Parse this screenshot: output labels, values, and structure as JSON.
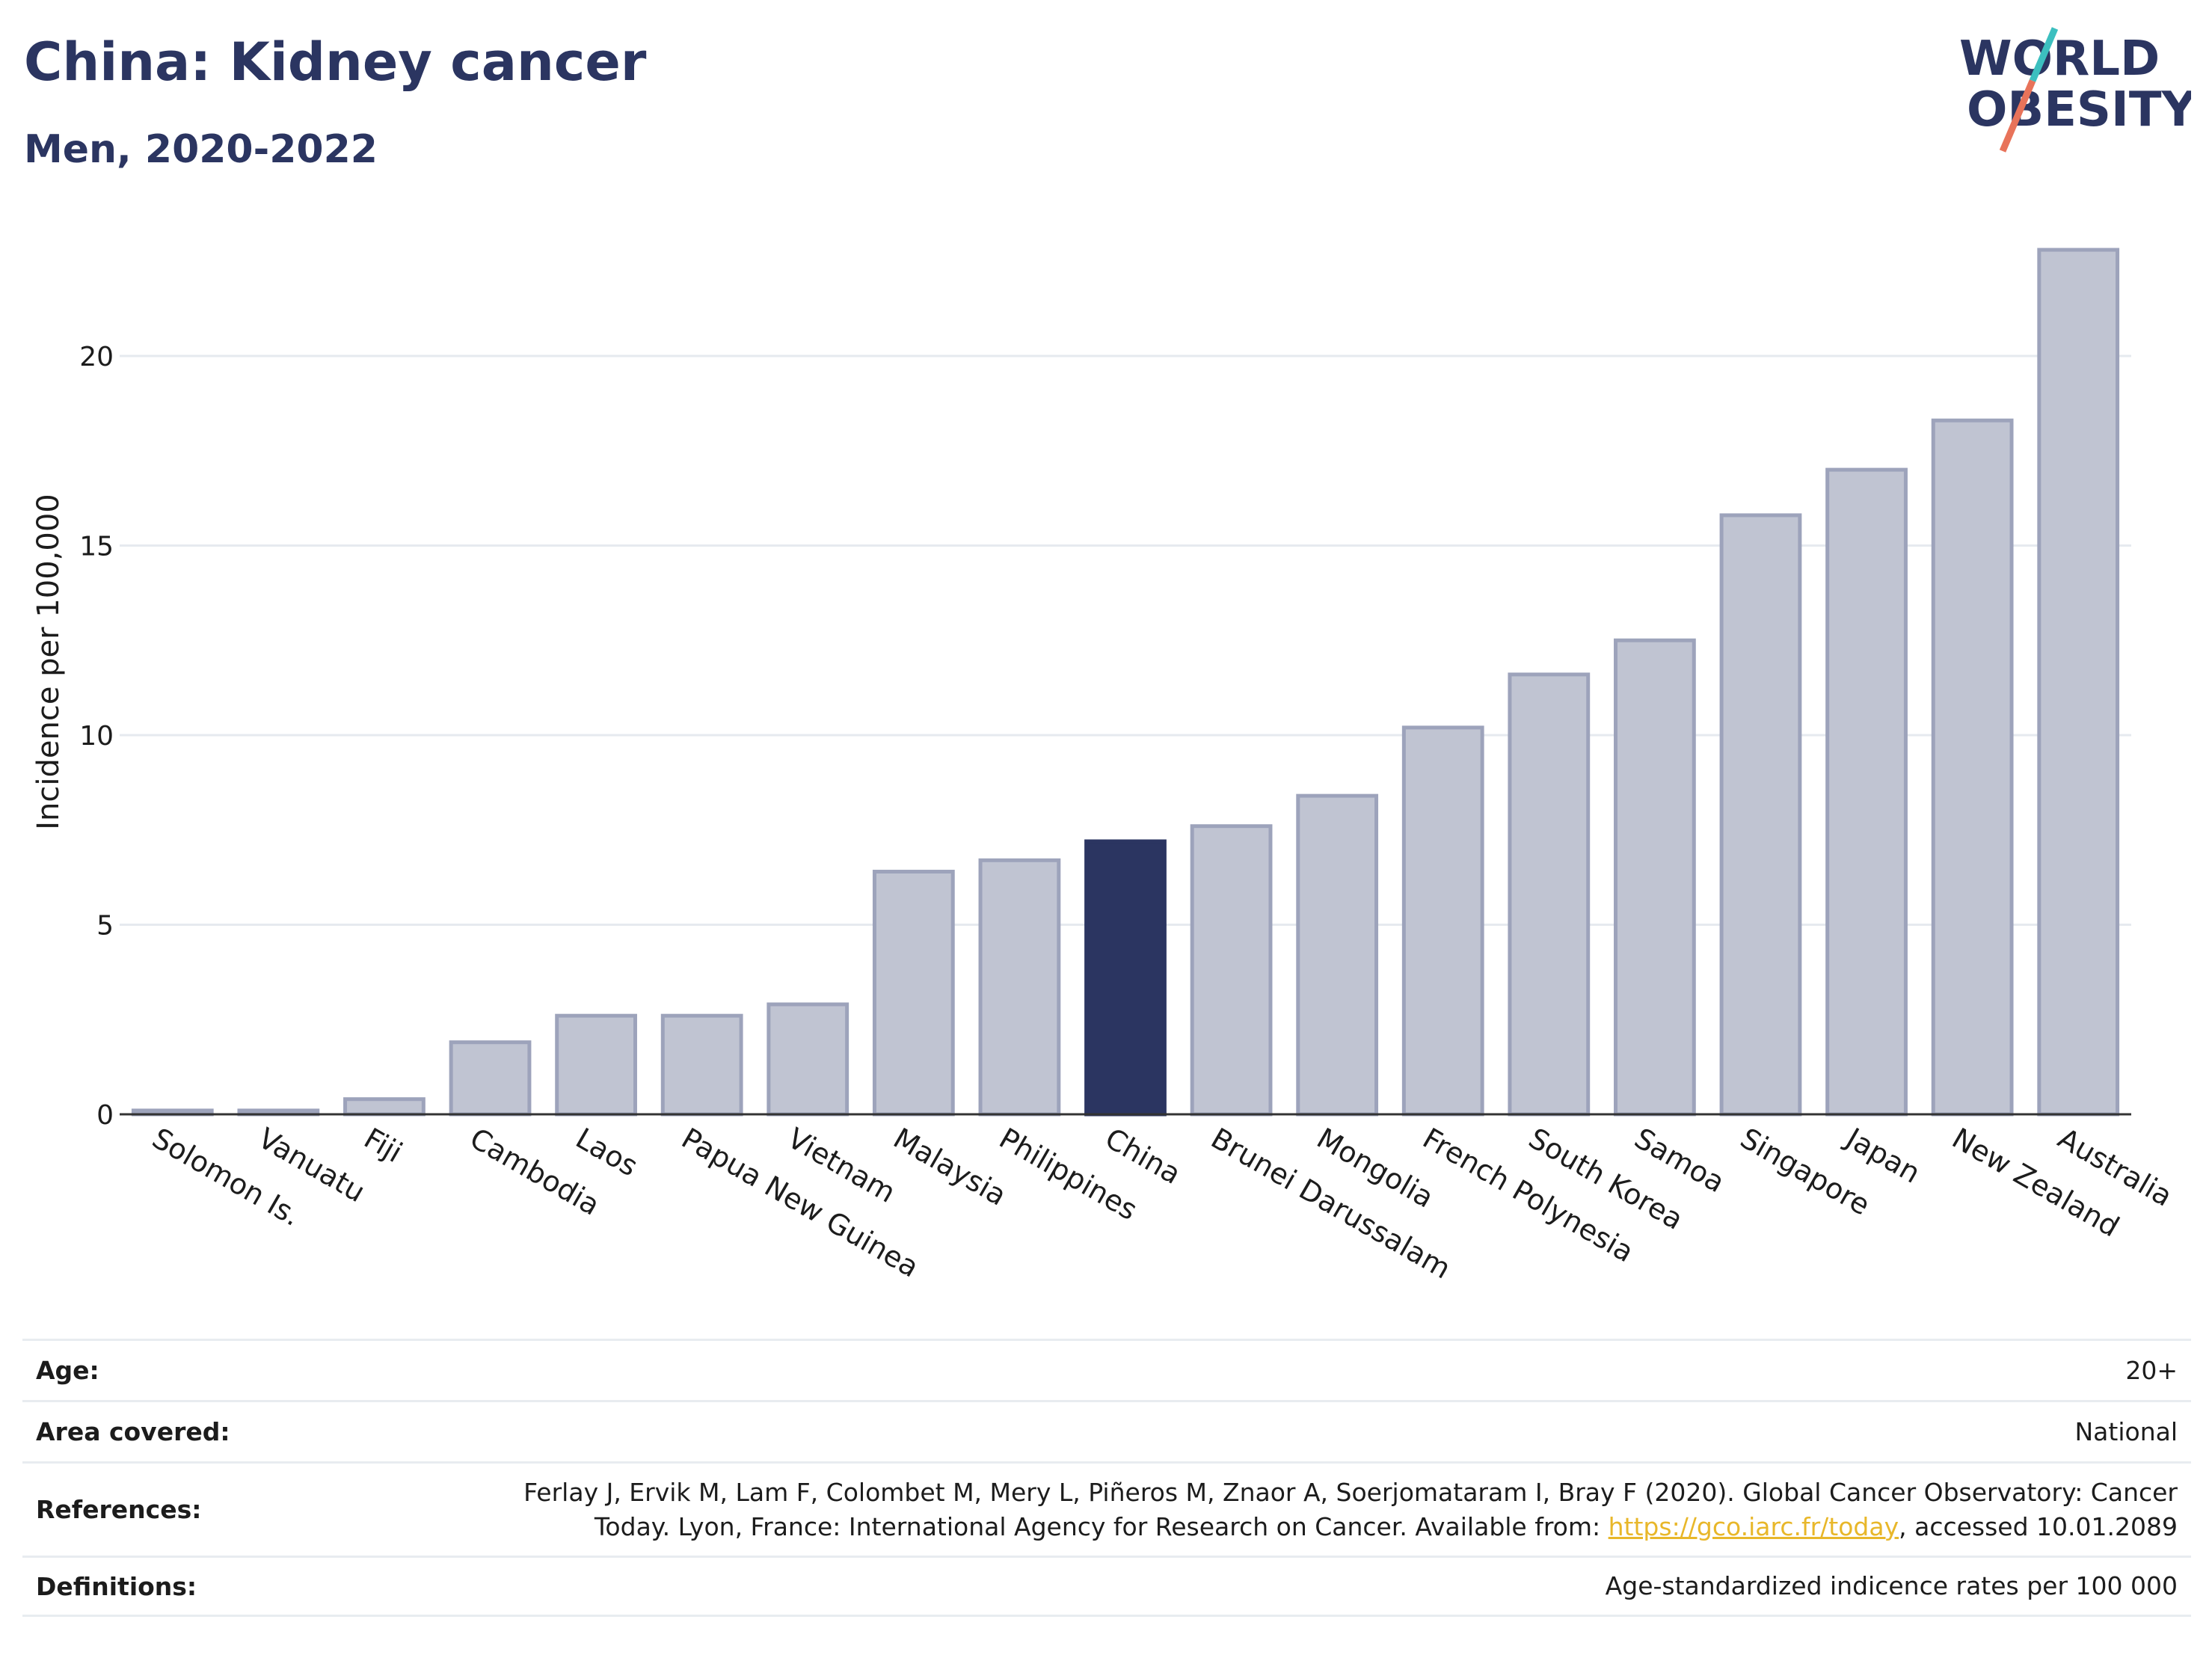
{
  "header": {
    "title": "China: Kidney cancer",
    "subtitle": "Men, 2020-2022"
  },
  "logo": {
    "line1": "WORLD",
    "line2": "OBESITY",
    "colors": {
      "text": "#2b3561",
      "slash_teal": "#3cbfbf",
      "slash_coral": "#e8735a"
    }
  },
  "chart_data": {
    "type": "bar",
    "categories": [
      "Solomon Is.",
      "Vanuatu",
      "Fiji",
      "Cambodia",
      "Laos",
      "Papua New Guinea",
      "Vietnam",
      "Malaysia",
      "Philippines",
      "China",
      "Brunei Darussalam",
      "Mongolia",
      "French Polynesia",
      "South Korea",
      "Samoa",
      "Singapore",
      "Japan",
      "New Zealand",
      "Australia"
    ],
    "values": [
      0.1,
      0.1,
      0.4,
      1.9,
      2.6,
      2.6,
      2.9,
      6.4,
      6.7,
      7.2,
      7.6,
      8.4,
      10.2,
      11.6,
      12.5,
      15.8,
      17.0,
      18.3,
      22.8
    ],
    "highlight": "China",
    "title": "",
    "xlabel": "",
    "ylabel": "Incidence per 100,000",
    "ylim": [
      0,
      23.5
    ],
    "yticks": [
      0,
      5,
      10,
      15,
      20
    ],
    "grid": true,
    "colors": {
      "bar": "#c0c4d2",
      "bar_edge": "#9da3bb",
      "highlight": "#2b3561",
      "grid": "#e6eaef",
      "axis": "#333333"
    }
  },
  "info": {
    "age_label": "Age:",
    "age_value": "20+",
    "area_label": "Area covered:",
    "area_value": "National",
    "references_label": "References:",
    "references_line1": "Ferlay J, Ervik M, Lam F, Colombet M, Mery L, Piñeros M, Znaor A, Soerjomataram I, Bray F (2020). Global Cancer Observatory: Cancer",
    "references_line2_pre": "Today. Lyon, France: International Agency for Research on Cancer. Available from: ",
    "references_link": "https://gco.iarc.fr/today",
    "references_line2_post": ", accessed 10.01.2089",
    "definitions_label": "Definitions:",
    "definitions_value": "Age-standardized indicence rates per 100 000"
  }
}
